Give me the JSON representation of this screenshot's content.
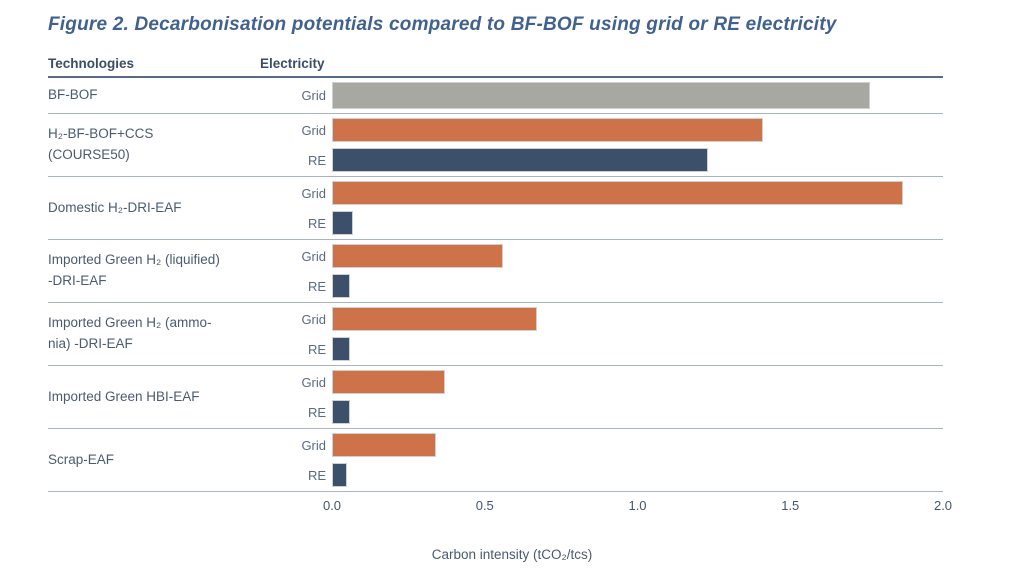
{
  "title": "Figure 2. Decarbonisation potentials compared to BF-BOF using grid or RE electricity",
  "table": {
    "col_technologies": "Technologies",
    "col_electricity": "Electricity"
  },
  "colors": {
    "grid_bar": "#ce7249",
    "re_bar": "#3c506b",
    "baseline_bar": "#a7a8a1",
    "title_text": "#41628f"
  },
  "chart_data": {
    "type": "bar",
    "orientation": "horizontal",
    "title": "Figure 2. Decarbonisation potentials compared to BF-BOF using grid or RE electricity",
    "xlabel": "Carbon intensity (tCO₂/tcs)",
    "xlim": [
      0,
      2.0
    ],
    "xticks": [
      "0.0",
      "0.5",
      "1.0",
      "1.5",
      "2.0"
    ],
    "grid": false,
    "legend": "none (colors keyed by Electricity column: Grid = orange, RE = dark blue, BF-BOF baseline = grey)",
    "rows": [
      {
        "technology_lines": [
          "BF-BOF"
        ],
        "bars": [
          {
            "electricity": "Grid",
            "value": 1.76,
            "color": "#a7a8a1"
          }
        ]
      },
      {
        "technology_lines": [
          "H₂-BF-BOF+CCS",
          "(COURSE50)"
        ],
        "bars": [
          {
            "electricity": "Grid",
            "value": 1.41,
            "color": "#ce7249"
          },
          {
            "electricity": "RE",
            "value": 1.23,
            "color": "#3c506b"
          }
        ]
      },
      {
        "technology_lines": [
          "Domestic H₂-DRI-EAF"
        ],
        "bars": [
          {
            "electricity": "Grid",
            "value": 1.87,
            "color": "#ce7249"
          },
          {
            "electricity": "RE",
            "value": 0.07,
            "color": "#3c506b"
          }
        ]
      },
      {
        "technology_lines": [
          "Imported Green H₂ (liquified)",
          "-DRI-EAF"
        ],
        "bars": [
          {
            "electricity": "Grid",
            "value": 0.56,
            "color": "#ce7249"
          },
          {
            "electricity": "RE",
            "value": 0.06,
            "color": "#3c506b"
          }
        ]
      },
      {
        "technology_lines": [
          "Imported Green H₂ (ammo-",
          "nia) -DRI-EAF"
        ],
        "bars": [
          {
            "electricity": "Grid",
            "value": 0.67,
            "color": "#ce7249"
          },
          {
            "electricity": "RE",
            "value": 0.06,
            "color": "#3c506b"
          }
        ]
      },
      {
        "technology_lines": [
          "Imported Green HBI-EAF"
        ],
        "bars": [
          {
            "electricity": "Grid",
            "value": 0.37,
            "color": "#ce7249"
          },
          {
            "electricity": "RE",
            "value": 0.06,
            "color": "#3c506b"
          }
        ]
      },
      {
        "technology_lines": [
          "Scrap-EAF"
        ],
        "bars": [
          {
            "electricity": "Grid",
            "value": 0.34,
            "color": "#ce7249"
          },
          {
            "electricity": "RE",
            "value": 0.05,
            "color": "#3c506b"
          }
        ]
      }
    ]
  }
}
